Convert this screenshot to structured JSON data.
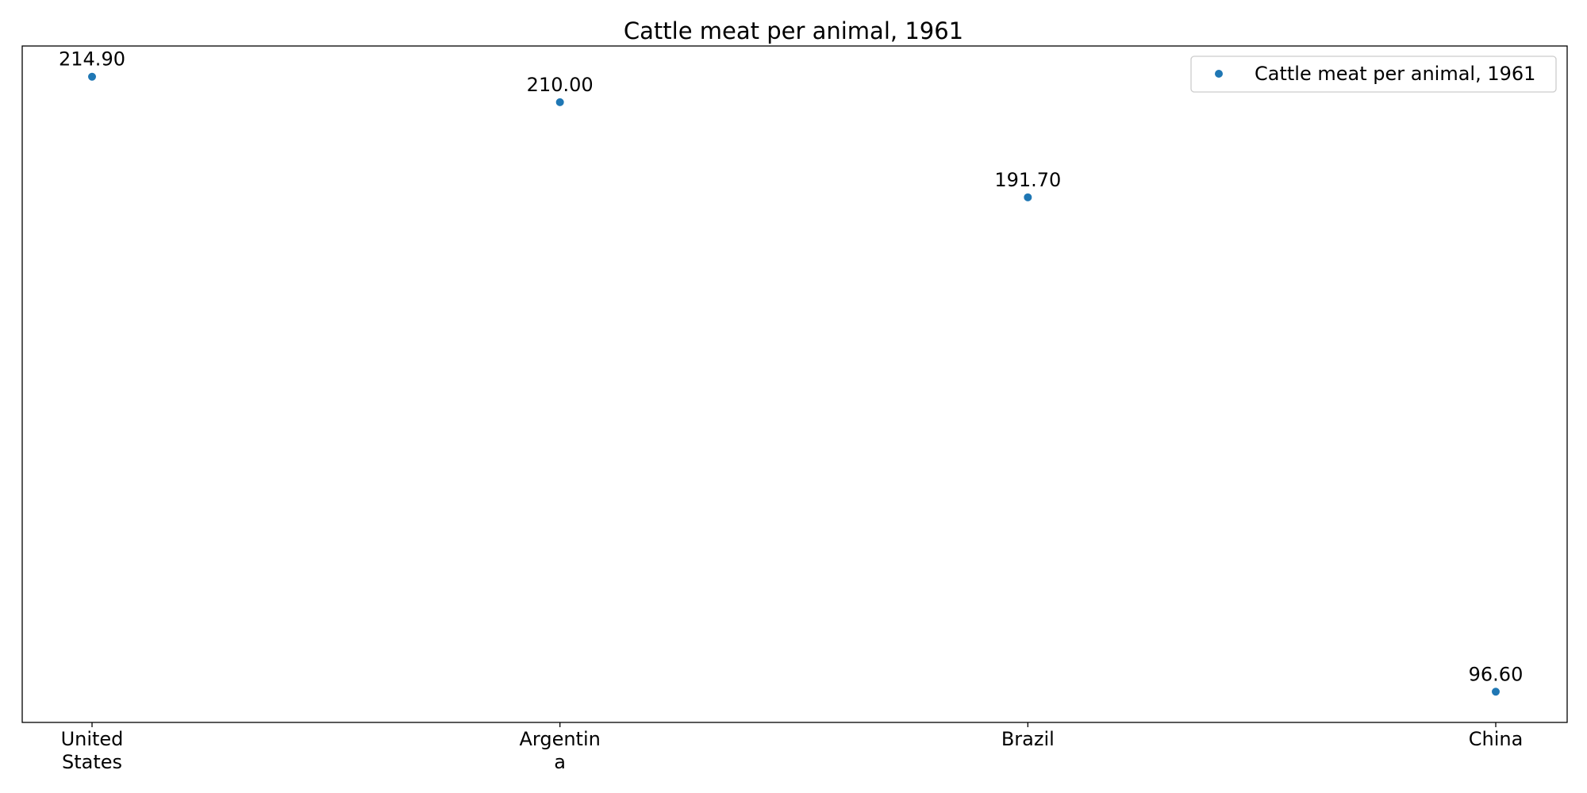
{
  "chart_data": {
    "type": "scatter",
    "title": "Cattle meat per animal, 1961",
    "xlabel": "",
    "ylabel": "",
    "categories": [
      [
        "United",
        "States"
      ],
      [
        "Argentin",
        "a"
      ],
      [
        "Brazil"
      ],
      [
        "China"
      ]
    ],
    "series": [
      {
        "name": "Cattle meat per animal, 1961",
        "color": "#1f77b4",
        "values": [
          214.9,
          210.0,
          191.7,
          96.6
        ],
        "labels": [
          "214.90",
          "210.00",
          "191.70",
          "96.60"
        ]
      }
    ],
    "ylim": [
      90.69,
      220.81
    ],
    "grid": false,
    "legend_position": "top-right",
    "marker": "circle"
  }
}
